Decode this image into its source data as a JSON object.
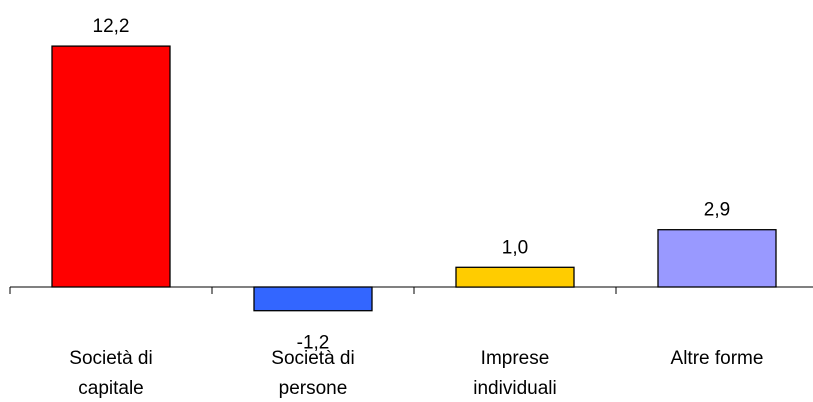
{
  "chart_data": {
    "type": "bar",
    "categories": [
      [
        "Società di",
        "capitale"
      ],
      [
        "Società di",
        "persone"
      ],
      [
        "Imprese",
        "individuali"
      ],
      [
        "Altre forme"
      ]
    ],
    "values": [
      12.2,
      -1.2,
      1.0,
      2.9
    ],
    "value_labels": [
      "12,2",
      "-1,2",
      "1,0",
      "2,9"
    ],
    "colors": [
      "#ff0000",
      "#3366ff",
      "#ffcc00",
      "#9999ff"
    ],
    "ylim": [
      -1.2,
      12.2
    ],
    "grid": false,
    "legend": "none",
    "title": "",
    "xlabel": "",
    "ylabel": ""
  }
}
